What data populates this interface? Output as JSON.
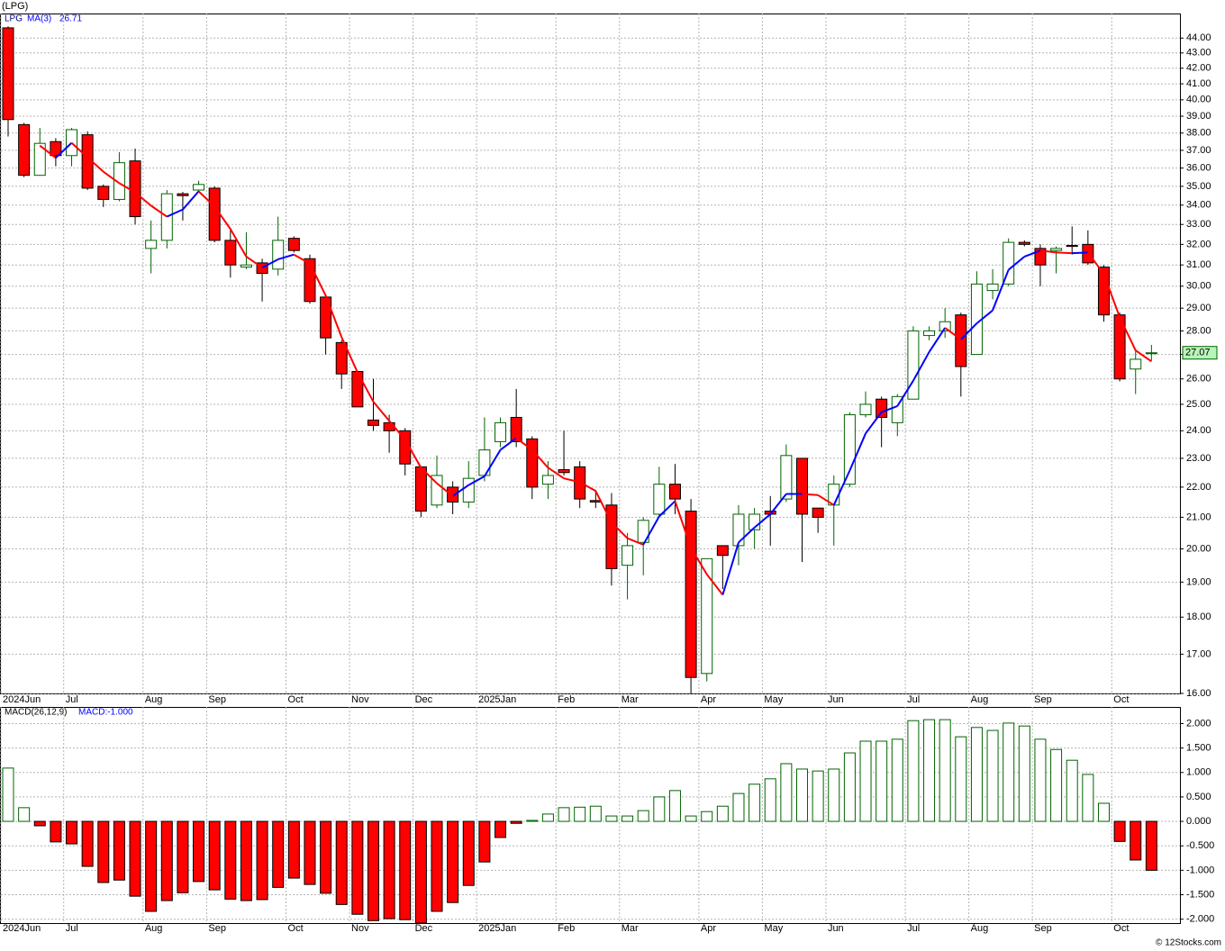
{
  "chart_data": [
    {
      "type": "candlestick",
      "title": "(LPG)",
      "series_name": "LPG",
      "ma_name": "MA(3)",
      "categories": [
        "2024Jun",
        null,
        null,
        null,
        "Jul",
        null,
        null,
        null,
        null,
        "Aug",
        null,
        null,
        null,
        "Sep",
        null,
        null,
        null,
        null,
        "Oct",
        null,
        null,
        null,
        "Nov",
        null,
        null,
        null,
        "Dec",
        null,
        null,
        null,
        "2025Jan",
        null,
        null,
        null,
        null,
        "Feb",
        null,
        null,
        null,
        "Mar",
        null,
        null,
        null,
        null,
        "Apr",
        null,
        null,
        null,
        "May",
        null,
        null,
        null,
        "Jun",
        null,
        null,
        null,
        null,
        "Jul",
        null,
        null,
        null,
        "Aug",
        null,
        null,
        null,
        "Sep",
        null,
        null,
        null,
        null,
        "Oct",
        null,
        null
      ],
      "open": [
        44.7,
        38.5,
        35.6,
        37.5,
        36.7,
        37.9,
        35.0,
        34.3,
        36.4,
        31.8,
        32.2,
        34.6,
        34.8,
        34.9,
        32.2,
        30.9,
        31.1,
        30.8,
        32.3,
        31.3,
        29.5,
        27.5,
        26.3,
        24.4,
        24.3,
        24.0,
        22.7,
        21.4,
        22.0,
        21.5,
        22.4,
        23.6,
        24.5,
        23.7,
        22.1,
        22.6,
        22.7,
        21.55,
        21.4,
        19.5,
        20.2,
        21.1,
        22.1,
        21.2,
        16.5,
        20.1,
        20.1,
        20.6,
        21.2,
        21.6,
        23.0,
        21.3,
        21.4,
        22.1,
        24.6,
        25.2,
        24.3,
        25.2,
        27.8,
        28.0,
        28.7,
        27.0,
        29.8,
        30.1,
        32.1,
        31.8,
        31.7,
        31.95,
        32.0,
        30.9,
        28.7,
        26.4,
        27.05
      ],
      "high": [
        44.8,
        38.6,
        38.3,
        37.7,
        38.3,
        38.1,
        35.1,
        36.9,
        37.1,
        33.2,
        34.8,
        34.7,
        35.3,
        35.0,
        32.8,
        32.6,
        31.3,
        33.4,
        32.4,
        31.5,
        29.6,
        27.6,
        26.3,
        26.0,
        24.6,
        24.1,
        22.7,
        23.1,
        22.2,
        22.9,
        24.5,
        24.5,
        25.6,
        23.8,
        22.9,
        24.0,
        22.9,
        21.9,
        21.8,
        20.5,
        21.0,
        22.7,
        22.8,
        21.6,
        19.7,
        20.1,
        21.4,
        21.3,
        21.7,
        23.5,
        23.0,
        21.3,
        22.4,
        24.7,
        25.5,
        25.3,
        25.4,
        28.2,
        28.2,
        29.0,
        28.8,
        30.7,
        30.8,
        32.3,
        32.2,
        32.0,
        31.9,
        32.9,
        32.7,
        31.0,
        28.8,
        27.2,
        27.4
      ],
      "low": [
        37.8,
        35.5,
        35.6,
        36.1,
        36.1,
        34.8,
        33.9,
        34.2,
        33.0,
        30.6,
        31.8,
        33.2,
        34.7,
        32.1,
        30.4,
        30.8,
        29.3,
        30.5,
        31.6,
        29.2,
        27.0,
        25.6,
        24.9,
        24.0,
        23.2,
        22.4,
        21.0,
        21.3,
        21.1,
        21.3,
        22.2,
        23.4,
        23.4,
        21.6,
        21.6,
        22.4,
        21.3,
        21.3,
        18.9,
        18.5,
        19.2,
        21.0,
        21.1,
        16.0,
        16.3,
        18.8,
        19.5,
        20.0,
        20.1,
        21.5,
        19.6,
        20.5,
        20.1,
        22.0,
        24.5,
        23.4,
        23.8,
        25.2,
        27.6,
        27.7,
        25.3,
        27.0,
        29.4,
        30.0,
        31.9,
        30.0,
        30.6,
        31.5,
        31.0,
        28.4,
        25.9,
        25.4,
        26.75
      ],
      "close": [
        38.8,
        35.6,
        37.4,
        36.7,
        38.2,
        34.9,
        34.3,
        36.3,
        33.4,
        32.2,
        34.6,
        34.5,
        35.1,
        32.2,
        31.0,
        31.0,
        30.6,
        32.2,
        31.7,
        29.3,
        27.7,
        26.2,
        24.9,
        24.2,
        24.0,
        22.8,
        21.2,
        22.4,
        21.5,
        22.3,
        23.3,
        24.3,
        23.6,
        22.0,
        22.4,
        22.5,
        21.6,
        21.5,
        19.4,
        20.1,
        20.9,
        22.1,
        21.6,
        16.4,
        19.7,
        19.8,
        21.1,
        21.1,
        21.1,
        23.1,
        21.1,
        21.0,
        22.1,
        24.6,
        25.0,
        24.5,
        25.3,
        28.0,
        28.0,
        28.4,
        26.5,
        30.1,
        30.1,
        32.1,
        32.0,
        31.0,
        31.8,
        31.9,
        31.1,
        28.7,
        26.0,
        26.8,
        27.07
      ],
      "ma": [
        null,
        null,
        37.27,
        36.57,
        37.43,
        36.6,
        35.8,
        35.17,
        34.67,
        33.97,
        33.4,
        33.77,
        34.73,
        33.93,
        32.77,
        31.4,
        30.87,
        31.27,
        31.5,
        31.07,
        29.57,
        27.73,
        26.27,
        25.1,
        24.37,
        23.67,
        22.67,
        22.13,
        21.7,
        22.07,
        22.37,
        23.3,
        23.73,
        23.3,
        22.67,
        22.3,
        22.17,
        21.87,
        20.83,
        20.33,
        20.13,
        21.03,
        21.53,
        20.03,
        19.23,
        18.63,
        20.2,
        20.67,
        21.1,
        21.77,
        21.77,
        21.73,
        21.4,
        22.57,
        23.9,
        24.7,
        24.93,
        25.93,
        27.1,
        28.13,
        27.63,
        28.33,
        28.9,
        30.77,
        31.4,
        31.7,
        31.6,
        31.57,
        31.6,
        30.57,
        28.6,
        27.17,
        26.71
      ],
      "colors": {
        "up": "#006400",
        "down": "#ff0000",
        "ma_rising": "#0000ff",
        "ma_falling": "#ff0000"
      },
      "log_scale": true,
      "grid": true,
      "ylim": [
        16,
        45.7
      ],
      "yticks": [
        {
          "value": 16,
          "label": "16.00"
        },
        {
          "value": 17,
          "label": "17.00"
        },
        {
          "value": 18,
          "label": "18.00"
        },
        {
          "value": 19,
          "label": "19.00"
        },
        {
          "value": 20,
          "label": "20.00"
        },
        {
          "value": 21,
          "label": "21.00"
        },
        {
          "value": 22,
          "label": "22.00"
        },
        {
          "value": 23,
          "label": "23.00"
        },
        {
          "value": 24,
          "label": "24.00"
        },
        {
          "value": 25,
          "label": "25.00"
        },
        {
          "value": 26,
          "label": "26.00"
        },
        {
          "value": 27,
          "label": "27.00"
        },
        {
          "value": 28,
          "label": "28.00"
        },
        {
          "value": 29,
          "label": "29.00"
        },
        {
          "value": 30,
          "label": "30.00"
        },
        {
          "value": 31,
          "label": "31.00"
        },
        {
          "value": 32,
          "label": "32.00"
        },
        {
          "value": 33,
          "label": "33.00"
        },
        {
          "value": 34,
          "label": "34.00"
        },
        {
          "value": 35,
          "label": "35.00"
        },
        {
          "value": 36,
          "label": "36.00"
        },
        {
          "value": 37,
          "label": "37.00"
        },
        {
          "value": 38,
          "label": "38.00"
        },
        {
          "value": 39,
          "label": "39.00"
        },
        {
          "value": 40,
          "label": "40.00"
        },
        {
          "value": 41,
          "label": "41.00"
        },
        {
          "value": 42,
          "label": "42.00"
        },
        {
          "value": 43,
          "label": "43.00"
        },
        {
          "value": 44,
          "label": "44.00"
        }
      ]
    },
    {
      "type": "bar",
      "title": "MACD(26,12,9)",
      "value_text": "MACD:-1.000",
      "values": [
        1.09,
        0.28,
        -0.09,
        -0.42,
        -0.46,
        -0.92,
        -1.25,
        -1.2,
        -1.53,
        -1.84,
        -1.62,
        -1.46,
        -1.23,
        -1.4,
        -1.59,
        -1.62,
        -1.6,
        -1.35,
        -1.16,
        -1.29,
        -1.47,
        -1.7,
        -1.9,
        -2.03,
        -1.99,
        -2.01,
        -2.08,
        -1.84,
        -1.66,
        -1.31,
        -0.83,
        -0.33,
        -0.04,
        0.02,
        0.15,
        0.28,
        0.29,
        0.31,
        0.11,
        0.11,
        0.22,
        0.5,
        0.63,
        0.11,
        0.2,
        0.31,
        0.57,
        0.76,
        0.87,
        1.18,
        1.07,
        1.03,
        1.07,
        1.4,
        1.64,
        1.64,
        1.68,
        2.06,
        2.08,
        2.08,
        1.73,
        1.92,
        1.86,
        2.01,
        1.95,
        1.68,
        1.47,
        1.25,
        0.96,
        0.37,
        -0.41,
        -0.79,
        -1.0
      ],
      "colors": {
        "positive": "#006400",
        "negative": "#ff0000"
      },
      "grid": true,
      "ylim": [
        -2.08,
        2.34
      ],
      "yticks": [
        {
          "value": 2,
          "label": "2.000"
        },
        {
          "value": 1.5,
          "label": "1.500"
        },
        {
          "value": 1,
          "label": "1.000"
        },
        {
          "value": 0.5,
          "label": "0.500"
        },
        {
          "value": 0,
          "label": "0.000"
        },
        {
          "value": -0.5,
          "label": "-0.500"
        },
        {
          "value": -1,
          "label": "-1.000"
        },
        {
          "value": -1.5,
          "label": "-1.500"
        },
        {
          "value": -2,
          "label": "-2.000"
        }
      ]
    }
  ],
  "footer": "© 12Stocks.com"
}
